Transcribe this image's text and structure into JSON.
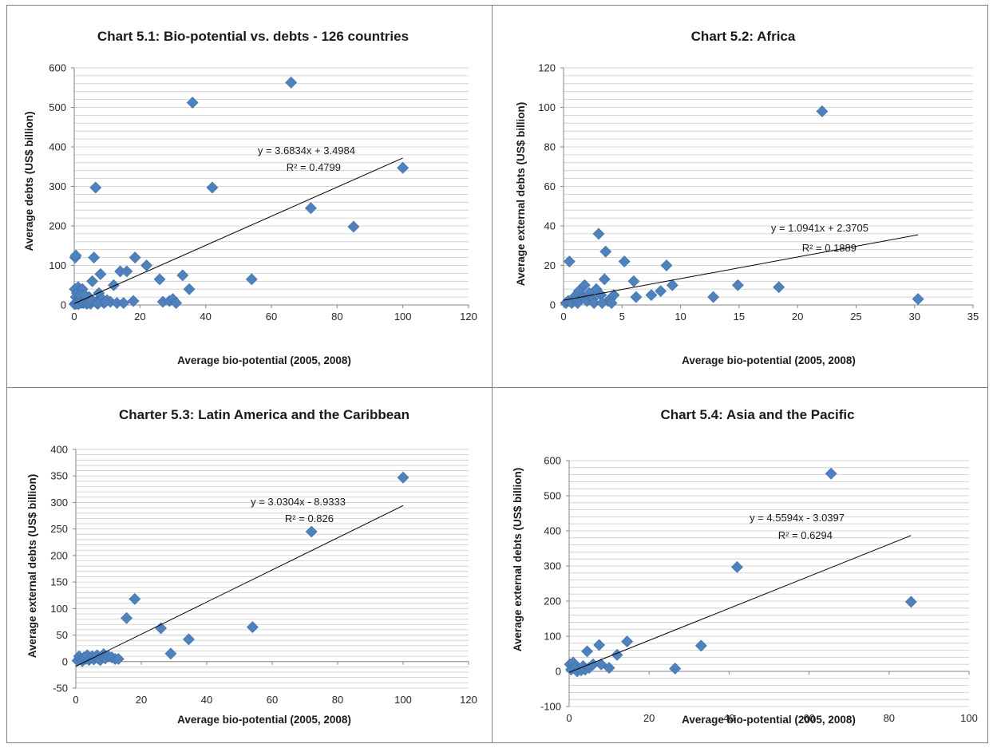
{
  "chart_data": [
    {
      "type": "scatter",
      "title": "Chart 5.1: Bio-potential vs. debts - 126 countries",
      "xlabel": "Average bio-potential (2005, 2008)",
      "ylabel": "Average debts (US$ billion)",
      "xlim": [
        0,
        120
      ],
      "ylim": [
        0,
        600
      ],
      "xticks": [
        "0",
        "20",
        "40",
        "60",
        "80",
        "100",
        "120"
      ],
      "yticks": [
        "0",
        "100",
        "200",
        "300",
        "400",
        "500",
        "600"
      ],
      "grid": true,
      "marker_color": "#4f81bd",
      "points": [
        [
          0.3,
          120
        ],
        [
          0.5,
          125
        ],
        [
          0.2,
          40
        ],
        [
          0.8,
          30
        ],
        [
          1.2,
          45
        ],
        [
          0.5,
          20
        ],
        [
          1.5,
          35
        ],
        [
          2,
          15
        ],
        [
          2.5,
          40
        ],
        [
          3,
          10
        ],
        [
          0.4,
          5
        ],
        [
          1,
          8
        ],
        [
          1.8,
          25
        ],
        [
          2.2,
          5
        ],
        [
          3.5,
          15
        ],
        [
          4,
          8
        ],
        [
          4.5,
          20
        ],
        [
          5,
          3
        ],
        [
          5.5,
          60
        ],
        [
          6,
          120
        ],
        [
          6.5,
          297
        ],
        [
          7,
          10
        ],
        [
          7.5,
          30
        ],
        [
          8,
          78
        ],
        [
          8.5,
          15
        ],
        [
          9,
          5
        ],
        [
          10,
          12
        ],
        [
          11,
          8
        ],
        [
          12,
          50
        ],
        [
          13,
          5
        ],
        [
          14,
          85
        ],
        [
          15,
          5
        ],
        [
          16,
          85
        ],
        [
          18,
          10
        ],
        [
          18.5,
          120
        ],
        [
          22,
          100
        ],
        [
          26,
          65
        ],
        [
          27,
          8
        ],
        [
          29,
          10
        ],
        [
          30,
          15
        ],
        [
          31,
          5
        ],
        [
          33,
          75
        ],
        [
          35,
          40
        ],
        [
          36,
          512
        ],
        [
          42,
          297
        ],
        [
          54,
          65
        ],
        [
          66,
          563
        ],
        [
          72,
          245
        ],
        [
          85,
          198
        ],
        [
          100,
          347
        ],
        [
          0.1,
          2
        ],
        [
          0.6,
          3
        ],
        [
          1.3,
          2
        ],
        [
          2.8,
          5
        ],
        [
          3.2,
          25
        ],
        [
          3.8,
          3
        ],
        [
          4.2,
          5
        ],
        [
          5.2,
          10
        ],
        [
          6.8,
          5
        ],
        [
          7.2,
          3
        ],
        [
          9.5,
          8
        ]
      ],
      "trendline": {
        "equation": "y = 3.6834x + 3.4984",
        "r2": "R² = 0.4799",
        "slope": 3.6834,
        "intercept": 3.4984,
        "x_range": [
          0,
          100
        ]
      }
    },
    {
      "type": "scatter",
      "title": "Chart 5.2: Africa",
      "xlabel": "Average bio-potential (2005, 2008)",
      "ylabel": "Average external debts (US$ billion)",
      "xlim": [
        0,
        35
      ],
      "ylim": [
        0,
        120
      ],
      "xticks": [
        "0",
        "5",
        "10",
        "15",
        "20",
        "25",
        "30",
        "35"
      ],
      "yticks": [
        "0",
        "20",
        "40",
        "60",
        "80",
        "100",
        "120"
      ],
      "grid": true,
      "marker_color": "#4f81bd",
      "points": [
        [
          0.2,
          1
        ],
        [
          0.4,
          2
        ],
        [
          0.5,
          22
        ],
        [
          0.7,
          1
        ],
        [
          1,
          3
        ],
        [
          1.2,
          1
        ],
        [
          1.5,
          5
        ],
        [
          1.8,
          10
        ],
        [
          2,
          2
        ],
        [
          2.2,
          6
        ],
        [
          2.5,
          3
        ],
        [
          2.8,
          8
        ],
        [
          3,
          36
        ],
        [
          3.2,
          5
        ],
        [
          3.5,
          13
        ],
        [
          3.6,
          27
        ],
        [
          3.8,
          2
        ],
        [
          4,
          3
        ],
        [
          4.3,
          5
        ],
        [
          5.2,
          22
        ],
        [
          6,
          12
        ],
        [
          6.2,
          4
        ],
        [
          7.5,
          5
        ],
        [
          8.3,
          7
        ],
        [
          8.8,
          20
        ],
        [
          9.3,
          10
        ],
        [
          12.8,
          4
        ],
        [
          14.9,
          10
        ],
        [
          18.4,
          9
        ],
        [
          22.1,
          98
        ],
        [
          30.3,
          3
        ],
        [
          0.9,
          4
        ],
        [
          1.3,
          7
        ],
        [
          2.6,
          1
        ],
        [
          3.3,
          1
        ],
        [
          4.1,
          1
        ]
      ],
      "trendline": {
        "equation": "y = 1.0941x + 2.3705",
        "r2": "R² = 0.1889",
        "slope": 1.0941,
        "intercept": 2.3705,
        "x_range": [
          0,
          30.3
        ]
      }
    },
    {
      "type": "scatter",
      "title": "Charter 5.3: Latin America and the Caribbean",
      "xlabel": "Average bio-potential (2005, 2008)",
      "ylabel": "Average external debts (US$ billion)",
      "xlim": [
        0,
        120
      ],
      "ylim": [
        -50,
        400
      ],
      "xticks": [
        "0",
        "20",
        "40",
        "60",
        "80",
        "100",
        "120"
      ],
      "yticks": [
        "-50",
        "0",
        "50",
        "100",
        "150",
        "200",
        "250",
        "300",
        "350",
        "400"
      ],
      "grid": true,
      "marker_color": "#4f81bd",
      "points": [
        [
          0.5,
          2
        ],
        [
          1,
          10
        ],
        [
          1.5,
          5
        ],
        [
          2,
          1
        ],
        [
          2.5,
          8
        ],
        [
          3,
          5
        ],
        [
          3.5,
          12
        ],
        [
          4,
          3
        ],
        [
          4.5,
          6
        ],
        [
          5,
          10
        ],
        [
          5.5,
          4
        ],
        [
          6,
          8
        ],
        [
          6.5,
          12
        ],
        [
          7,
          5
        ],
        [
          7.5,
          3
        ],
        [
          8,
          10
        ],
        [
          8.5,
          14
        ],
        [
          9,
          6
        ],
        [
          10,
          10
        ],
        [
          11,
          8
        ],
        [
          12,
          5
        ],
        [
          13,
          5
        ],
        [
          15.5,
          82
        ],
        [
          18,
          118
        ],
        [
          26,
          63
        ],
        [
          29,
          15
        ],
        [
          34.5,
          42
        ],
        [
          54,
          65
        ],
        [
          72,
          245
        ],
        [
          100,
          347
        ]
      ],
      "trendline": {
        "equation": "y = 3.0304x - 8.9333",
        "r2": "R² = 0.826",
        "slope": 3.0304,
        "intercept": -8.9333,
        "x_range": [
          0,
          100
        ]
      }
    },
    {
      "type": "scatter",
      "title": "Chart 5.4: Asia and the Pacific",
      "xlabel": "Average bio-potential (2005, 2008)",
      "ylabel": "Average external debts (US$ billion)",
      "xlim": [
        0,
        100
      ],
      "ylim": [
        -100,
        600
      ],
      "xticks": [
        "0",
        "20",
        "40",
        "60",
        "80",
        "100"
      ],
      "yticks": [
        "-100",
        "0",
        "100",
        "200",
        "300",
        "400",
        "500",
        "600"
      ],
      "grid": true,
      "marker_color": "#4f81bd",
      "points": [
        [
          0.2,
          20
        ],
        [
          0.5,
          5
        ],
        [
          1,
          25
        ],
        [
          1.5,
          10
        ],
        [
          2,
          0
        ],
        [
          2.5,
          8
        ],
        [
          3,
          3
        ],
        [
          3.5,
          15
        ],
        [
          4,
          5
        ],
        [
          4.5,
          57
        ],
        [
          5,
          10
        ],
        [
          6,
          20
        ],
        [
          7.5,
          75
        ],
        [
          8,
          20
        ],
        [
          10,
          10
        ],
        [
          12,
          47
        ],
        [
          14.5,
          85
        ],
        [
          26.5,
          8
        ],
        [
          33,
          73
        ],
        [
          42,
          297
        ],
        [
          65.5,
          563
        ],
        [
          85.5,
          198
        ]
      ],
      "trendline": {
        "equation": "y = 4.5594x - 3.0397",
        "r2": "R² = 0.6294",
        "slope": 4.5594,
        "intercept": -3.0397,
        "x_range": [
          0,
          85.5
        ]
      }
    }
  ]
}
